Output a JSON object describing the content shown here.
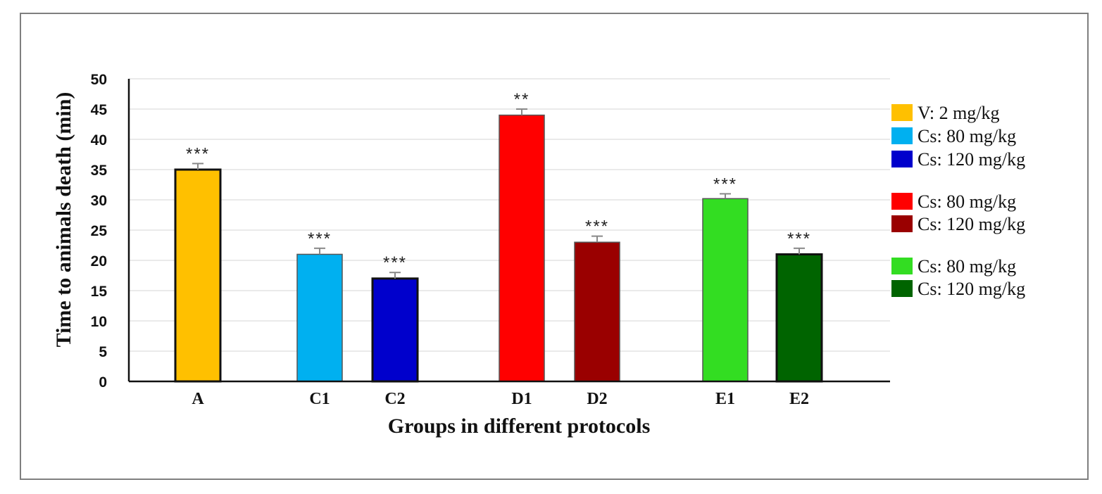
{
  "chart_data": {
    "type": "bar",
    "xlabel": "Groups in different protocols",
    "ylabel": "Time to animals death (min)",
    "ylim": [
      0,
      50
    ],
    "yticks": [
      0,
      5,
      10,
      15,
      20,
      25,
      30,
      35,
      40,
      45,
      50
    ],
    "grid": true,
    "legend_position": "right",
    "categories": [
      "A",
      "C1",
      "C2",
      "D1",
      "D2",
      "E1",
      "E2"
    ],
    "values": [
      35,
      21,
      17,
      44,
      23,
      30.2,
      21
    ],
    "errors": [
      1,
      1,
      1,
      1,
      1,
      0.8,
      1
    ],
    "significance": [
      "***",
      "***",
      "***",
      "**",
      "***",
      "***",
      "***"
    ],
    "colors": [
      "#ffc000",
      "#00b0f0",
      "#0000cc",
      "#ff0000",
      "#9a0000",
      "#33dd22",
      "#006400"
    ],
    "legend": [
      {
        "label": "V: 2 mg/kg",
        "color": "#ffc000"
      },
      {
        "label": "Cs: 80 mg/kg",
        "color": "#00b0f0"
      },
      {
        "label": "Cs: 120 mg/kg",
        "color": "#0000cc"
      },
      {
        "label": "Cs: 80 mg/kg",
        "color": "#ff0000"
      },
      {
        "label": "Cs: 120 mg/kg",
        "color": "#9a0000"
      },
      {
        "label": "Cs: 80 mg/kg",
        "color": "#33dd22"
      },
      {
        "label": "Cs: 120 mg/kg",
        "color": "#006400"
      }
    ]
  }
}
